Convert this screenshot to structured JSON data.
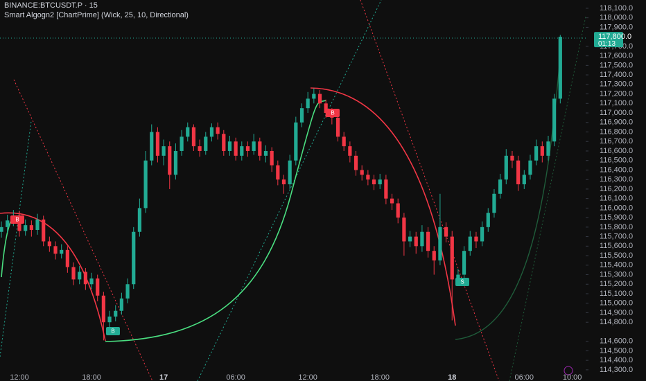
{
  "chart_data": {
    "type": "candlestick",
    "title": "BINANCE:BTCUSDT.P · 15",
    "subtitle": "Smart Algogn2 [ChartPrime] (Wick, 25, 10, Directional)",
    "categories": [
      null,
      null,
      null,
      "12:00",
      null,
      null,
      null,
      null,
      null,
      null,
      null,
      null,
      null,
      null,
      null,
      "18:00",
      null,
      null,
      null,
      null,
      null,
      null,
      null,
      null,
      null,
      null,
      null,
      "17",
      null,
      null,
      null,
      null,
      null,
      null,
      null,
      null,
      null,
      null,
      null,
      "06:00",
      null,
      null,
      null,
      null,
      null,
      null,
      null,
      null,
      null,
      null,
      null,
      "12:00",
      null,
      null,
      null,
      null,
      null,
      null,
      null,
      null,
      null,
      null,
      null,
      "18:00",
      null,
      null,
      null,
      null,
      null,
      null,
      null,
      null,
      null,
      null,
      null,
      "18",
      null,
      null,
      null,
      null,
      null,
      null,
      null,
      null,
      null,
      null,
      null,
      "06:00",
      null,
      null,
      null,
      null,
      null,
      null,
      null,
      "10:00"
    ],
    "open": [
      115750,
      115800,
      115870,
      115920,
      115760,
      115820,
      115770,
      115880,
      115650,
      115600,
      115520,
      115560,
      115380,
      115250,
      115330,
      115200,
      115260,
      115080,
      114800,
      114860,
      114920,
      115050,
      115200,
      115750,
      116000,
      116500,
      116800,
      116550,
      116650,
      116350,
      116600,
      116750,
      116850,
      116650,
      116600,
      116750,
      116850,
      116780,
      116600,
      116700,
      116550,
      116650,
      116600,
      116700,
      116550,
      116600,
      116450,
      116300,
      116250,
      116500,
      116900,
      117050,
      117150,
      117200,
      117100,
      117000,
      116950,
      116750,
      116650,
      116550,
      116400,
      116350,
      116300,
      116250,
      116300,
      116100,
      116050,
      115900,
      115650,
      115700,
      115600,
      115750,
      115550,
      115450,
      115800,
      115700,
      115250,
      115300,
      115550,
      115700,
      115650,
      115800,
      115950,
      116150,
      116300,
      116550,
      116500,
      116250,
      116350,
      116500,
      116650,
      116550,
      116700,
      117150,
      null,
      null
    ],
    "high": [
      115860,
      115930,
      115980,
      115970,
      115880,
      115870,
      115940,
      115920,
      115700,
      115650,
      115620,
      115600,
      115430,
      115390,
      115370,
      115320,
      115300,
      115120,
      114920,
      114980,
      115110,
      115260,
      115800,
      116100,
      116600,
      116880,
      116850,
      116720,
      116700,
      116680,
      116820,
      116900,
      116880,
      116720,
      116800,
      116890,
      116900,
      116820,
      116760,
      116740,
      116700,
      116700,
      116780,
      116740,
      116660,
      116640,
      116500,
      116350,
      116560,
      116960,
      117100,
      117220,
      117260,
      117240,
      117140,
      117050,
      117000,
      116800,
      116700,
      116600,
      116450,
      116400,
      116350,
      116360,
      116350,
      116150,
      116100,
      115950,
      115760,
      115750,
      115820,
      115800,
      115600,
      116150,
      115850,
      115760,
      115360,
      115600,
      115760,
      115750,
      115860,
      116000,
      116200,
      116360,
      116620,
      116600,
      116550,
      116400,
      116560,
      116720,
      116700,
      116760,
      117200,
      117820,
      null,
      null
    ],
    "low": [
      115690,
      115740,
      115810,
      115700,
      115710,
      115700,
      115720,
      115600,
      115540,
      115460,
      115470,
      115320,
      115190,
      115200,
      115140,
      115150,
      115020,
      114610,
      114720,
      114810,
      114880,
      115000,
      115150,
      115700,
      115950,
      116450,
      116480,
      116450,
      116200,
      116300,
      116550,
      116700,
      116600,
      116540,
      116560,
      116700,
      116720,
      116550,
      116550,
      116500,
      116500,
      116540,
      116560,
      116500,
      116480,
      116380,
      116240,
      116150,
      116200,
      116450,
      116850,
      117000,
      117100,
      117050,
      116950,
      116880,
      116700,
      116600,
      116480,
      116340,
      116290,
      116240,
      116190,
      116200,
      116040,
      115980,
      115840,
      115500,
      115590,
      115520,
      115540,
      115480,
      115300,
      115400,
      115640,
      114820,
      115180,
      115250,
      115500,
      115580,
      115600,
      115750,
      115900,
      116100,
      116250,
      116420,
      116180,
      116200,
      116300,
      116450,
      116480,
      116500,
      116650,
      117100,
      null,
      null
    ],
    "close": [
      115800,
      115870,
      115920,
      115760,
      115820,
      115770,
      115880,
      115650,
      115600,
      115520,
      115560,
      115380,
      115250,
      115330,
      115200,
      115260,
      115080,
      114800,
      114860,
      114920,
      115050,
      115200,
      115750,
      116000,
      116500,
      116800,
      116550,
      116650,
      116350,
      116600,
      116750,
      116850,
      116650,
      116600,
      116750,
      116850,
      116780,
      116600,
      116700,
      116550,
      116650,
      116600,
      116700,
      116550,
      116600,
      116450,
      116300,
      116250,
      116500,
      116900,
      117050,
      117150,
      117200,
      117100,
      117000,
      116950,
      116750,
      116650,
      116550,
      116400,
      116350,
      116300,
      116250,
      116300,
      116100,
      116050,
      115900,
      115650,
      115700,
      115600,
      115750,
      115550,
      115450,
      115800,
      115700,
      115250,
      115300,
      115550,
      115700,
      115650,
      115800,
      115950,
      116150,
      116300,
      116550,
      116500,
      116250,
      116350,
      116500,
      116650,
      116550,
      116700,
      117150,
      117800,
      null,
      null
    ],
    "up_color": "#22ab94",
    "down_color": "#f23645",
    "ylim": [
      114270,
      118187
    ],
    "yticks": [
      {
        "value": 114300,
        "label": "114,300.0"
      },
      {
        "value": 114400,
        "label": "114,400.0"
      },
      {
        "value": 114500,
        "label": "114,500.0"
      },
      {
        "value": 114600,
        "label": "114,600.0"
      },
      {
        "value": 114800,
        "label": "114,800.0"
      },
      {
        "value": 114900,
        "label": "114,900.0"
      },
      {
        "value": 115000,
        "label": "115,000.0"
      },
      {
        "value": 115100,
        "label": "115,100.0"
      },
      {
        "value": 115200,
        "label": "115,200.0"
      },
      {
        "value": 115300,
        "label": "115,300.0"
      },
      {
        "value": 115400,
        "label": "115,400.0"
      },
      {
        "value": 115500,
        "label": "115,500.0"
      },
      {
        "value": 115600,
        "label": "115,600.0"
      },
      {
        "value": 115700,
        "label": "115,700.0"
      },
      {
        "value": 115800,
        "label": "115,800.0"
      },
      {
        "value": 115900,
        "label": "115,900.0"
      },
      {
        "value": 116000,
        "label": "116,000.0"
      },
      {
        "value": 116100,
        "label": "116,100.0"
      },
      {
        "value": 116200,
        "label": "116,200.0"
      },
      {
        "value": 116300,
        "label": "116,300.0"
      },
      {
        "value": 116400,
        "label": "116,400.0"
      },
      {
        "value": 116500,
        "label": "116,500.0"
      },
      {
        "value": 116600,
        "label": "116,600.0"
      },
      {
        "value": 116700,
        "label": "116,700.0"
      },
      {
        "value": 116800,
        "label": "116,800.0"
      },
      {
        "value": 116900,
        "label": "116,900.0"
      },
      {
        "value": 117000,
        "label": "117,000.0"
      },
      {
        "value": 117100,
        "label": "117,100.0"
      },
      {
        "value": 117200,
        "label": "117,200.0"
      },
      {
        "value": 117300,
        "label": "117,300.0"
      },
      {
        "value": 117400,
        "label": "117,400.0"
      },
      {
        "value": 117500,
        "label": "117,500.0"
      },
      {
        "value": 117600,
        "label": "117,600.0"
      },
      {
        "value": 117700,
        "label": "117,700.0"
      },
      {
        "value": 117900,
        "label": "117,900.0"
      },
      {
        "value": 118000,
        "label": "118,000.0"
      },
      {
        "value": 118100,
        "label": "118,100.0"
      }
    ],
    "last_price": {
      "value": 117800,
      "label": "117,800.0"
    },
    "countdown": "01:13",
    "signals": [
      "B",
      "B",
      "B",
      "S"
    ],
    "grid": false
  }
}
